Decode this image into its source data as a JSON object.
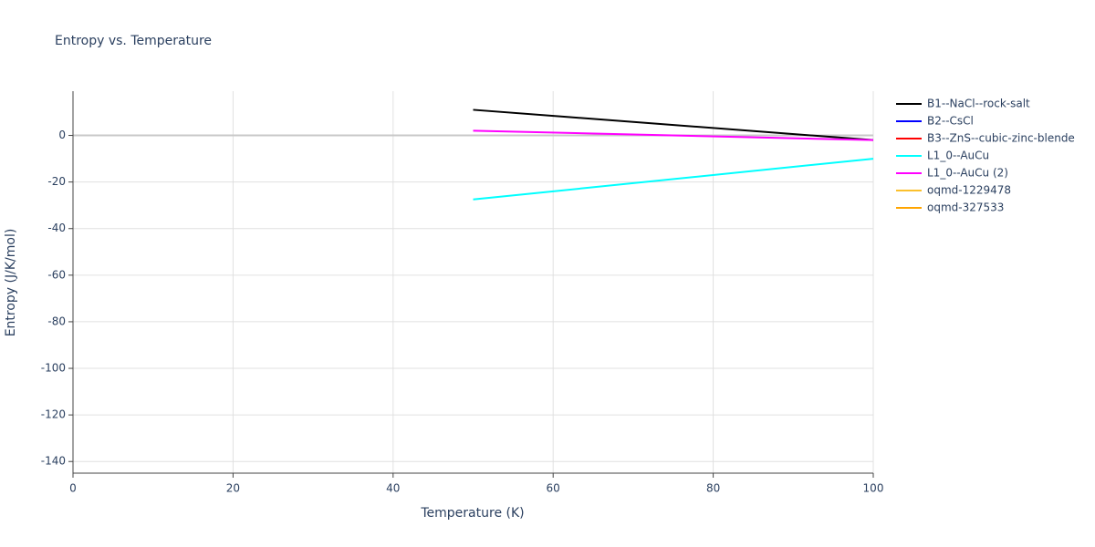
{
  "chart_data": {
    "type": "line",
    "title": "Entropy vs. Temperature",
    "x_label": "Temperature (K)",
    "y_label": "Entropy (J/K/mol)",
    "xlim": [
      0,
      100
    ],
    "xticks": [
      0,
      20,
      40,
      60,
      80,
      100
    ],
    "ylim": [
      -145,
      19
    ],
    "yticks": [
      0,
      -20,
      -40,
      -60,
      -80,
      -100,
      -120,
      -140
    ],
    "grid": true,
    "legend": "right",
    "series": [
      {
        "name": "B1--NaCl--rock-salt",
        "color": "#000000",
        "x": [
          50,
          100
        ],
        "values": [
          11,
          -2
        ]
      },
      {
        "name": "B2--CsCl",
        "color": "#0000ff",
        "x": [],
        "values": []
      },
      {
        "name": "B3--ZnS--cubic-zinc-blende",
        "color": "#ff0000",
        "x": [],
        "values": []
      },
      {
        "name": "L1_0--AuCu",
        "color": "#00ffff",
        "x": [
          50,
          100
        ],
        "values": [
          -27.5,
          -10
        ]
      },
      {
        "name": "L1_0--AuCu (2)",
        "color": "#ff00ff",
        "x": [
          50,
          100
        ],
        "values": [
          2,
          -2
        ]
      },
      {
        "name": "oqmd-1229478",
        "color": "#fbc02d",
        "x": [],
        "values": []
      },
      {
        "name": "oqmd-327533",
        "color": "#ffa500",
        "x": [],
        "values": []
      }
    ]
  }
}
